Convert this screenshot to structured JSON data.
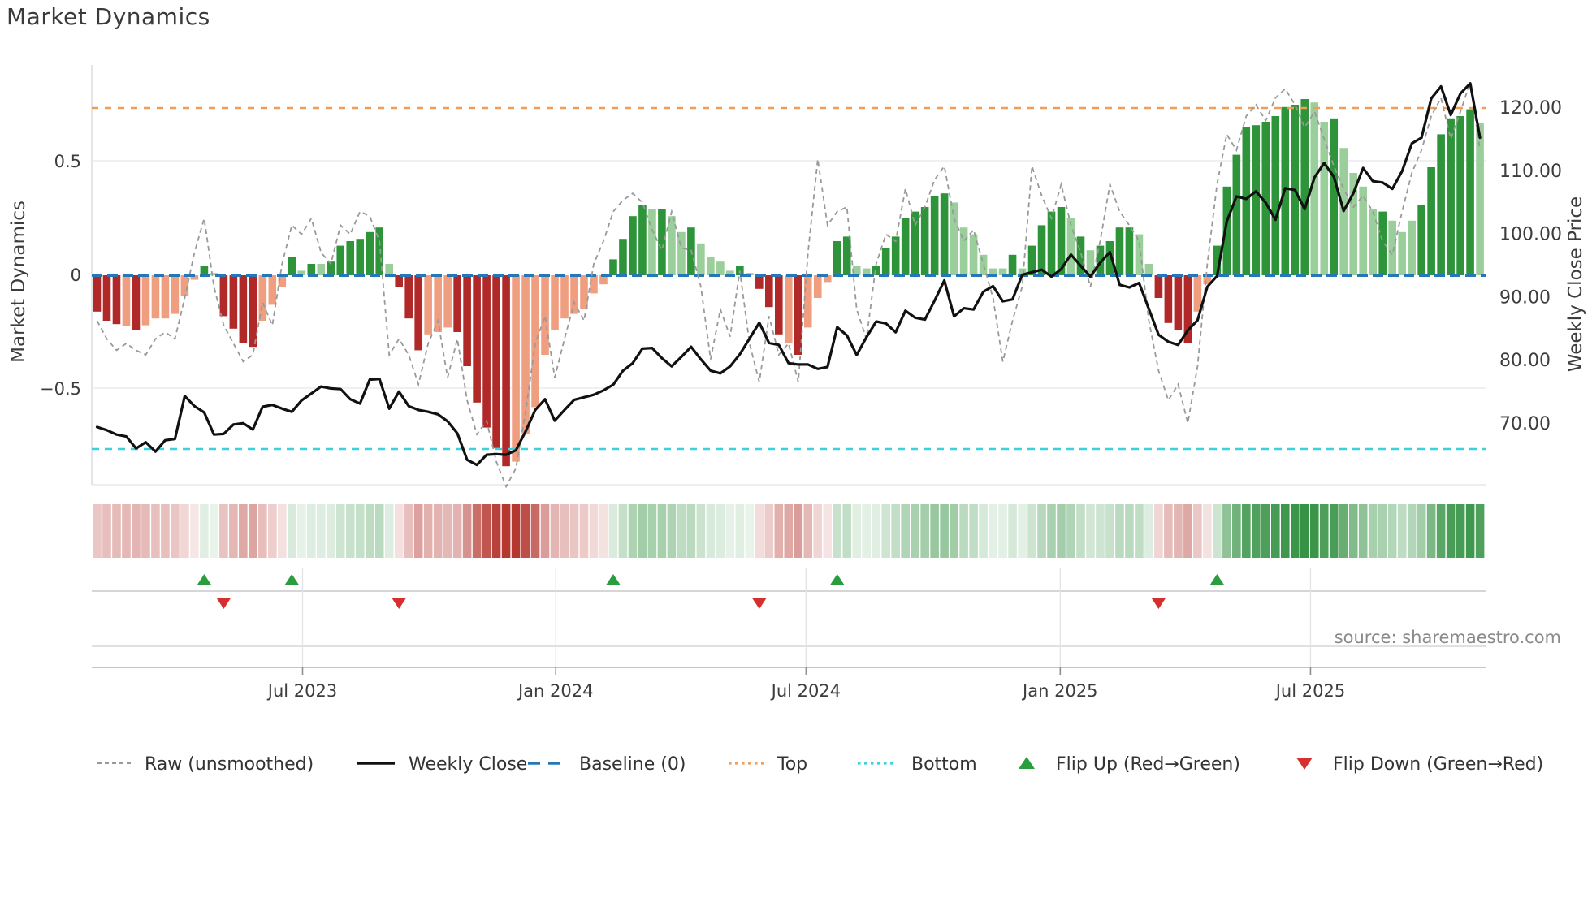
{
  "title": "Market Dynamics",
  "source": "source: sharemaestro.com",
  "axes": {
    "left_label": "Market Dynamics",
    "right_label": "Weekly Close Price",
    "left_ticks": [
      {
        "label": "0.5",
        "value": 0.5
      },
      {
        "label": "0",
        "value": 0
      },
      {
        "label": "−0.5",
        "value": -0.5
      }
    ],
    "right_ticks": [
      {
        "label": "120.00",
        "value": 120
      },
      {
        "label": "110.00",
        "value": 110
      },
      {
        "label": "100.00",
        "value": 100
      },
      {
        "label": "90.00",
        "value": 90
      },
      {
        "label": "80.00",
        "value": 80
      },
      {
        "label": "70.00",
        "value": 70
      }
    ],
    "x_ticks": [
      {
        "label": "Jul 2023",
        "week": 21.1
      },
      {
        "label": "Jan 2024",
        "week": 47.1
      },
      {
        "label": "Jul 2024",
        "week": 72.8
      },
      {
        "label": "Jan 2025",
        "week": 98.9
      },
      {
        "label": "Jul 2025",
        "week": 124.6
      }
    ]
  },
  "legend": [
    {
      "label": "Raw (unsmoothed)",
      "swatch": "dash-gray"
    },
    {
      "label": "Weekly Close",
      "swatch": "line-black"
    },
    {
      "label": "Baseline (0)",
      "swatch": "dash-blue"
    },
    {
      "label": "Top",
      "swatch": "dot-orange"
    },
    {
      "label": "Bottom",
      "swatch": "dot-cyan"
    },
    {
      "label": "Flip Up (Red→Green)",
      "swatch": "tri-up-green"
    },
    {
      "label": "Flip Down (Green→Red)",
      "swatch": "tri-down-red"
    }
  ],
  "colors": {
    "bar_dark_green": "#2d943a",
    "bar_light_green": "#9ace9a",
    "bar_dark_red": "#b02828",
    "bar_light_red": "#f09e80",
    "baseline_blue": "#2577b5",
    "top_orange": "#f09d58",
    "bottom_cyan": "#3fd0e0",
    "raw_gray": "#999999",
    "close_black": "#111111",
    "flip_up_green": "#2a9d3f",
    "flip_down_red": "#d62f2f",
    "grid_gray": "#ececf1",
    "band_line": "#c9c9c9",
    "tick_text": "#3d3d3d",
    "source_text": "#8a8a8a",
    "heat_green_rgb": [
      47,
      143,
      62
    ],
    "heat_red_rgb": [
      180,
      55,
      48
    ]
  },
  "chart_data": {
    "type": "combo-bar-line-heatmap",
    "title": "Market Dynamics",
    "ylabel_left": "Market Dynamics",
    "ylabel_right": "Weekly Close Price",
    "baseline": 0,
    "top_threshold": 0.735,
    "bottom_threshold": -0.765,
    "ylim_left": [
      -0.95,
      0.93
    ],
    "ylim_right_ticks": [
      70,
      80,
      90,
      100,
      110,
      120
    ],
    "legend_position": "bottom",
    "weeks": 143,
    "oscillator": [
      -0.16,
      -0.2,
      -0.215,
      -0.225,
      -0.24,
      -0.22,
      -0.19,
      -0.19,
      -0.17,
      -0.09,
      -0.02,
      0.04,
      0.01,
      -0.18,
      -0.235,
      -0.3,
      -0.315,
      -0.2,
      -0.13,
      -0.05,
      0.08,
      0.02,
      0.05,
      0.05,
      0.06,
      0.13,
      0.15,
      0.16,
      0.19,
      0.21,
      0.05,
      -0.05,
      -0.19,
      -0.33,
      -0.26,
      -0.25,
      -0.23,
      -0.25,
      -0.4,
      -0.56,
      -0.67,
      -0.76,
      -0.84,
      -0.82,
      -0.7,
      -0.58,
      -0.35,
      -0.24,
      -0.19,
      -0.17,
      -0.15,
      -0.08,
      -0.04,
      0.07,
      0.16,
      0.26,
      0.31,
      0.29,
      0.29,
      0.26,
      0.19,
      0.21,
      0.14,
      0.08,
      0.06,
      0.02,
      0.04,
      0.01,
      -0.06,
      -0.14,
      -0.26,
      -0.3,
      -0.35,
      -0.23,
      -0.1,
      -0.03,
      0.15,
      0.17,
      0.04,
      0.03,
      0.04,
      0.12,
      0.17,
      0.25,
      0.28,
      0.3,
      0.35,
      0.36,
      0.32,
      0.21,
      0.18,
      0.09,
      0.03,
      0.03,
      0.09,
      0.03,
      0.13,
      0.22,
      0.28,
      0.3,
      0.25,
      0.17,
      0.11,
      0.13,
      0.15,
      0.21,
      0.21,
      0.18,
      0.05,
      -0.1,
      -0.21,
      -0.24,
      -0.3,
      -0.16,
      -0.04,
      0.13,
      0.39,
      0.53,
      0.65,
      0.66,
      0.675,
      0.7,
      0.74,
      0.75,
      0.775,
      0.76,
      0.675,
      0.69,
      0.56,
      0.45,
      0.39,
      0.29,
      0.28,
      0.24,
      0.19,
      0.24,
      0.31,
      0.475,
      0.62,
      0.69,
      0.7,
      0.73,
      0.67
    ],
    "tone": [
      "d",
      "d",
      "d",
      "l",
      "d",
      "l",
      "l",
      "l",
      "l",
      "l",
      "l",
      "d",
      "l",
      "d",
      "d",
      "d",
      "d",
      "l",
      "l",
      "l",
      "d",
      "l",
      "d",
      "l",
      "d",
      "d",
      "d",
      "d",
      "d",
      "d",
      "l",
      "d",
      "d",
      "d",
      "l",
      "l",
      "l",
      "d",
      "d",
      "d",
      "d",
      "d",
      "d",
      "l",
      "l",
      "l",
      "l",
      "l",
      "l",
      "l",
      "l",
      "l",
      "l",
      "d",
      "d",
      "d",
      "d",
      "l",
      "d",
      "l",
      "l",
      "d",
      "l",
      "l",
      "l",
      "l",
      "d",
      "l",
      "d",
      "d",
      "d",
      "l",
      "d",
      "l",
      "l",
      "l",
      "d",
      "d",
      "l",
      "l",
      "d",
      "d",
      "d",
      "d",
      "d",
      "d",
      "d",
      "d",
      "l",
      "l",
      "l",
      "l",
      "l",
      "l",
      "d",
      "l",
      "d",
      "d",
      "d",
      "d",
      "l",
      "d",
      "l",
      "d",
      "d",
      "d",
      "d",
      "l",
      "l",
      "d",
      "d",
      "d",
      "d",
      "l",
      "l",
      "d",
      "d",
      "d",
      "d",
      "d",
      "d",
      "d",
      "d",
      "d",
      "d",
      "l",
      "l",
      "d",
      "l",
      "l",
      "l",
      "l",
      "d",
      "l",
      "l",
      "l",
      "d",
      "d",
      "d",
      "d",
      "d",
      "d",
      "l"
    ],
    "weekly_close": [
      69.5,
      69.0,
      68.3,
      68.0,
      66.1,
      67.1,
      65.6,
      67.4,
      67.6,
      74.4,
      72.8,
      71.8,
      68.3,
      68.4,
      69.9,
      70.1,
      69.1,
      72.7,
      73.0,
      72.4,
      71.9,
      73.7,
      74.8,
      75.9,
      75.6,
      75.5,
      73.9,
      73.2,
      77.0,
      77.1,
      72.4,
      75.1,
      72.8,
      72.2,
      71.9,
      71.5,
      70.4,
      68.5,
      64.3,
      63.5,
      65.1,
      65.2,
      65.1,
      65.8,
      68.8,
      72.2,
      73.9,
      70.5,
      72.2,
      73.8,
      74.2,
      74.6,
      75.3,
      76.2,
      78.4,
      79.6,
      81.9,
      82.0,
      80.4,
      79.1,
      80.6,
      82.2,
      80.2,
      78.4,
      78.0,
      79.1,
      81.0,
      83.5,
      86.0,
      82.8,
      82.5,
      79.6,
      79.4,
      79.4,
      78.7,
      79.0,
      85.3,
      84.0,
      80.9,
      83.7,
      86.2,
      85.9,
      84.5,
      87.9,
      86.8,
      86.5,
      89.5,
      92.7,
      87.0,
      88.3,
      88.1,
      90.9,
      91.8,
      89.4,
      89.7,
      93.6,
      94.0,
      94.4,
      93.3,
      94.5,
      96.8,
      95.0,
      93.3,
      95.5,
      97.2,
      92.0,
      91.6,
      92.3,
      88.2,
      84.1,
      83.0,
      82.5,
      84.8,
      86.4,
      91.7,
      93.4,
      102.0,
      106.0,
      105.6,
      106.8,
      105.0,
      102.3,
      107.3,
      107.0,
      104.0,
      109.0,
      111.3,
      109.1,
      103.7,
      106.5,
      110.5,
      108.4,
      108.2,
      107.2,
      110.0,
      114.4,
      115.3,
      121.5,
      123.4,
      118.9,
      122.3,
      123.9,
      115.3
    ],
    "raw": [
      -0.2,
      -0.28,
      -0.33,
      -0.3,
      -0.33,
      -0.35,
      -0.28,
      -0.25,
      -0.28,
      -0.1,
      0.1,
      0.25,
      -0.05,
      -0.22,
      -0.3,
      -0.38,
      -0.35,
      -0.12,
      -0.22,
      0.05,
      0.22,
      0.18,
      0.25,
      0.1,
      0.05,
      0.22,
      0.18,
      0.28,
      0.26,
      0.15,
      -0.35,
      -0.28,
      -0.35,
      -0.48,
      -0.3,
      -0.2,
      -0.45,
      -0.28,
      -0.55,
      -0.7,
      -0.64,
      -0.82,
      -0.93,
      -0.85,
      -0.6,
      -0.3,
      -0.18,
      -0.45,
      -0.28,
      -0.12,
      -0.2,
      0.05,
      0.15,
      0.28,
      0.33,
      0.36,
      0.32,
      0.2,
      0.11,
      0.28,
      0.12,
      0.11,
      -0.05,
      -0.37,
      -0.15,
      -0.27,
      0.02,
      -0.3,
      -0.47,
      -0.18,
      -0.35,
      -0.3,
      -0.47,
      0.1,
      0.51,
      0.22,
      0.28,
      0.3,
      -0.15,
      -0.28,
      0.05,
      0.18,
      0.15,
      0.38,
      0.22,
      0.3,
      0.42,
      0.48,
      0.25,
      0.15,
      0.2,
      0.05,
      -0.1,
      -0.38,
      -0.2,
      -0.05,
      0.48,
      0.35,
      0.25,
      0.4,
      0.22,
      0.1,
      -0.05,
      0.15,
      0.4,
      0.28,
      0.22,
      0.15,
      -0.2,
      -0.42,
      -0.55,
      -0.48,
      -0.65,
      -0.4,
      0.05,
      0.4,
      0.62,
      0.55,
      0.7,
      0.75,
      0.68,
      0.78,
      0.82,
      0.75,
      0.65,
      0.72,
      0.6,
      0.48,
      0.38,
      0.3,
      0.35,
      0.28,
      0.15,
      0.09,
      0.28,
      0.45,
      0.55,
      0.7,
      0.78,
      0.6,
      0.72,
      0.85,
      0.55
    ],
    "flip_up_weeks": [
      11,
      20,
      53,
      76,
      115
    ],
    "flip_down_weeks": [
      13,
      31,
      68,
      109
    ]
  }
}
